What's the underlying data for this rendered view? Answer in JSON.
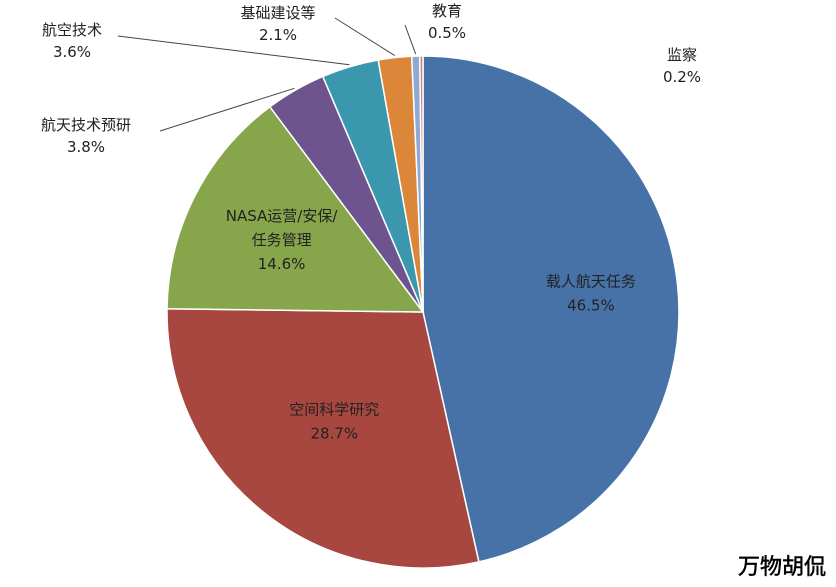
{
  "chart_data": {
    "type": "pie",
    "slices": [
      {
        "name": "载人航天任务",
        "value": 46.5,
        "label_text": "46.5%",
        "color": "#4672A8"
      },
      {
        "name": "空间科学研究",
        "value": 28.7,
        "label_text": "28.7%",
        "color": "#A8473F"
      },
      {
        "name": "NASA运营/安保/任务管理",
        "name_lines": [
          "NASA运营/安保/",
          "任务管理"
        ],
        "value": 14.6,
        "label_text": "14.6%",
        "color": "#87A54A"
      },
      {
        "name": "航天技术预研",
        "value": 3.8,
        "label_text": "3.8%",
        "color": "#6E548F"
      },
      {
        "name": "航空技术",
        "value": 3.6,
        "label_text": "3.6%",
        "color": "#3A97AD"
      },
      {
        "name": "基础建设等",
        "value": 2.1,
        "label_text": "2.1%",
        "color": "#DB8638"
      },
      {
        "name": "教育",
        "value": 0.5,
        "label_text": "0.5%",
        "color": "#8EA9D4"
      },
      {
        "name": "监察",
        "value": 0.2,
        "label_text": "0.2%",
        "color": "#D47F7B"
      }
    ]
  },
  "watermark": "万物胡侃"
}
